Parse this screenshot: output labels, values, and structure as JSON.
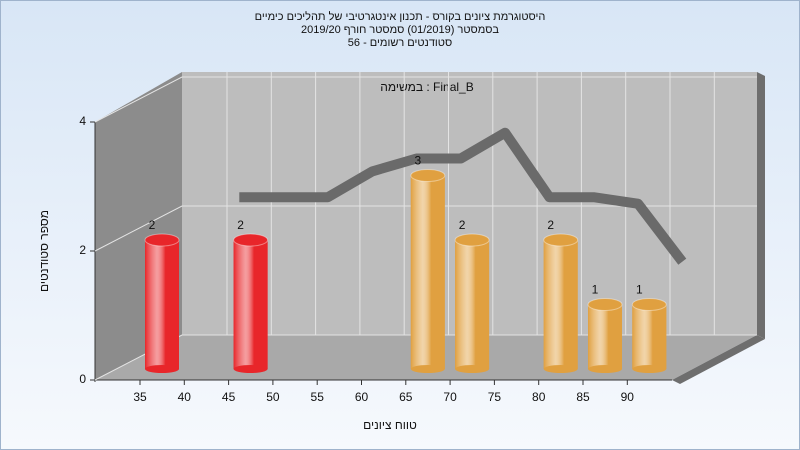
{
  "chart_data": {
    "type": "bar",
    "title": "היסטוגרמת ציונים בקורס - תכנון אינטגרטיבי של תהליכים כימיים",
    "subtitle": "בסמסטר  (01/2019)  סמסטר חורף 2019/20",
    "subtitle2": "סטודנטים רשומים - 56",
    "annotation": "במשימה : Final_B",
    "x_label": "טווח ציונים",
    "y_label": "מספר סטודנטים",
    "categories": [
      35,
      40,
      45,
      50,
      55,
      60,
      65,
      70,
      75,
      80,
      85,
      90
    ],
    "values": [
      2,
      0,
      2,
      0,
      0,
      0,
      3,
      2,
      0,
      2,
      1,
      1
    ],
    "colors": [
      "#e8262a",
      "#e8262a",
      "#e8262a",
      "#e8262a",
      "#e8262a",
      "#e8262a",
      "#e0a040",
      "#e0a040",
      "#e0a040",
      "#e0a040",
      "#e0a040",
      "#e0a040"
    ],
    "curve": [
      null,
      2.4,
      2.4,
      2.4,
      2.8,
      3.0,
      3.0,
      3.4,
      2.4,
      2.4,
      2.3,
      1.4
    ],
    "curve_color": "#6a6a6a",
    "ylim": [
      0,
      4
    ],
    "yticks": [
      0,
      2,
      4
    ],
    "grid": true
  }
}
